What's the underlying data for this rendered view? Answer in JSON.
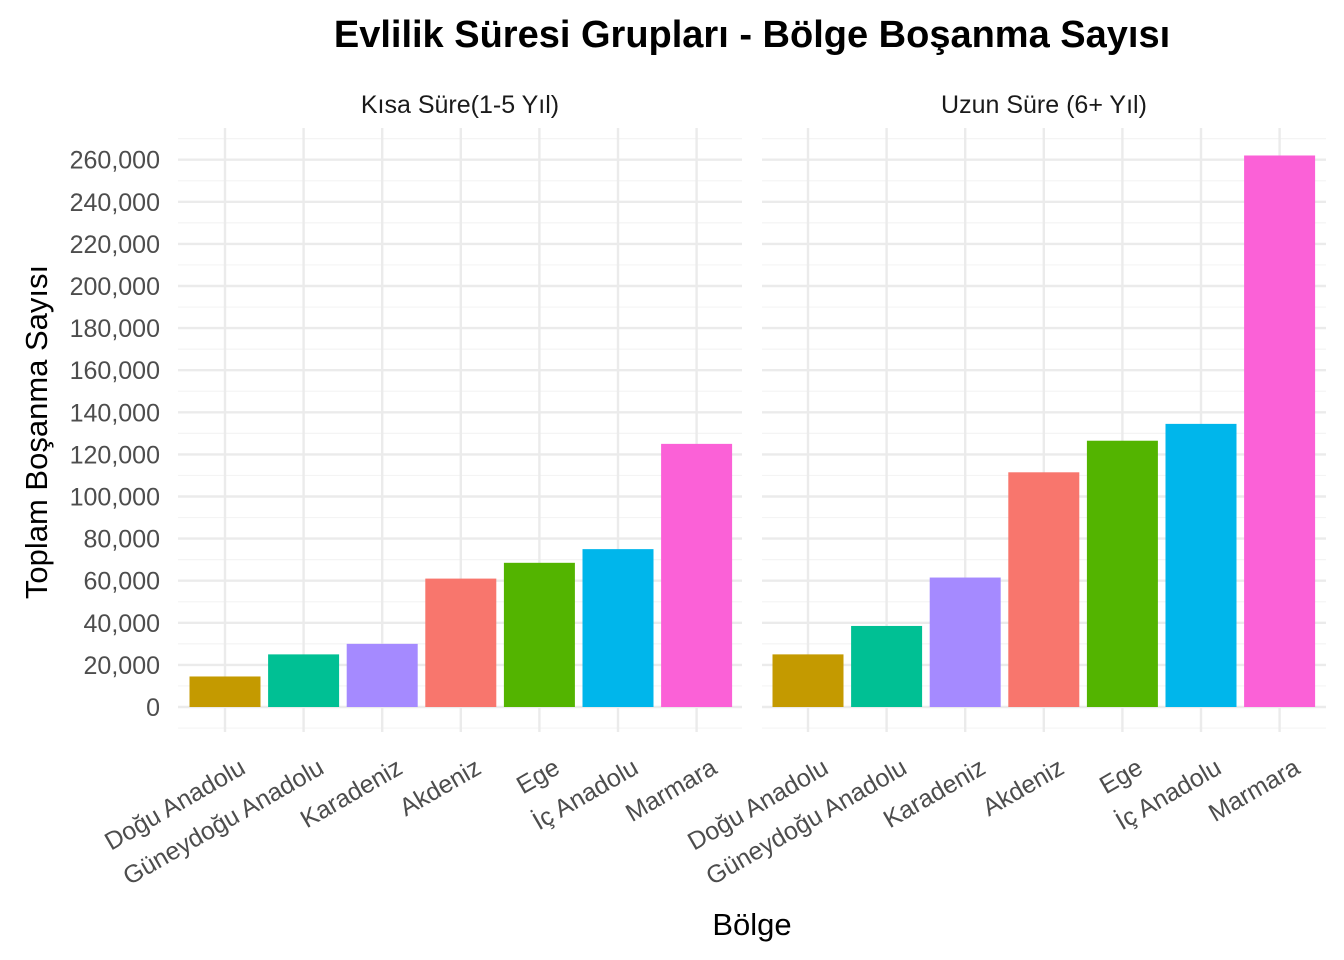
{
  "chart_data": {
    "type": "bar",
    "title": "Evlilik Süresi Grupları - Bölge Boşanma Sayısı",
    "xlabel": "Bölge",
    "ylabel": "Toplam Boşanma Sayısı",
    "ylim": [
      0,
      270000
    ],
    "yticks": [
      0,
      20000,
      40000,
      60000,
      80000,
      100000,
      120000,
      140000,
      160000,
      180000,
      200000,
      220000,
      240000,
      260000
    ],
    "ytick_labels": [
      "0",
      "20,000",
      "40,000",
      "60,000",
      "80,000",
      "100,000",
      "120,000",
      "140,000",
      "160,000",
      "180,000",
      "200,000",
      "220,000",
      "240,000",
      "260,000"
    ],
    "grid": true,
    "legend": "none",
    "panels": [
      {
        "name": "Kısa Süre(1-5 Yıl)",
        "categories": [
          "Doğu Anadolu",
          "Güneydoğu Anadolu",
          "Karadeniz",
          "Akdeniz",
          "Ege",
          "İç Anadolu",
          "Marmara"
        ],
        "values": [
          14500,
          25000,
          30000,
          61000,
          68500,
          75000,
          125000
        ],
        "colors": [
          "#C49A00",
          "#00C094",
          "#A58AFF",
          "#F8766D",
          "#53B400",
          "#00B6EB",
          "#FB61D7"
        ]
      },
      {
        "name": "Uzun Süre (6+ Yıl)",
        "categories": [
          "Doğu Anadolu",
          "Güneydoğu Anadolu",
          "Karadeniz",
          "Akdeniz",
          "Ege",
          "İç Anadolu",
          "Marmara"
        ],
        "values": [
          25000,
          38500,
          61500,
          111500,
          126500,
          134500,
          262000
        ],
        "colors": [
          "#C49A00",
          "#00C094",
          "#A58AFF",
          "#F8766D",
          "#53B400",
          "#00B6EB",
          "#FB61D7"
        ]
      }
    ]
  }
}
